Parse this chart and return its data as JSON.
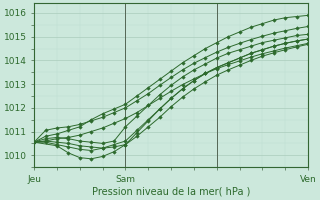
{
  "title": "Pression niveau de la mer( hPa )",
  "bg_color": "#cce8dc",
  "grid_major_color": "#aaccbb",
  "grid_minor_color": "#bbddd0",
  "line_color": "#2d6a2d",
  "marker_color": "#2d6a2d",
  "ylim": [
    1009.5,
    1016.4
  ],
  "xlim": [
    0,
    48
  ],
  "yticks": [
    1010,
    1011,
    1012,
    1013,
    1014,
    1015,
    1016
  ],
  "xtick_positions": [
    0,
    16,
    32,
    48
  ],
  "xtick_labels": [
    "Jeu",
    "Sam",
    "",
    "Ven"
  ],
  "vlines": [
    0,
    16,
    32
  ],
  "series": [
    [
      0,
      1010.55,
      2,
      1010.8,
      4,
      1010.9,
      6,
      1011.05,
      8,
      1011.2,
      10,
      1011.5,
      12,
      1011.75,
      14,
      1011.95,
      16,
      1012.15,
      18,
      1012.5,
      20,
      1012.85,
      22,
      1013.2,
      24,
      1013.55,
      26,
      1013.9,
      28,
      1014.2,
      30,
      1014.5,
      32,
      1014.75,
      34,
      1015.0,
      36,
      1015.2,
      38,
      1015.4,
      40,
      1015.55,
      42,
      1015.7,
      44,
      1015.8,
      46,
      1015.85,
      48,
      1015.9
    ],
    [
      0,
      1010.55,
      2,
      1010.7,
      4,
      1010.75,
      6,
      1010.7,
      8,
      1010.6,
      10,
      1010.55,
      12,
      1010.5,
      14,
      1010.6,
      16,
      1011.2,
      18,
      1011.65,
      20,
      1012.1,
      22,
      1012.55,
      24,
      1012.95,
      26,
      1013.3,
      28,
      1013.6,
      30,
      1013.85,
      32,
      1014.1,
      34,
      1014.3,
      36,
      1014.45,
      38,
      1014.6,
      40,
      1014.75,
      42,
      1014.85,
      44,
      1014.95,
      46,
      1015.05,
      48,
      1015.1
    ],
    [
      0,
      1010.55,
      2,
      1010.55,
      4,
      1010.45,
      6,
      1010.35,
      8,
      1010.25,
      10,
      1010.2,
      12,
      1010.3,
      14,
      1010.45,
      16,
      1010.6,
      18,
      1011.05,
      20,
      1011.5,
      22,
      1011.95,
      24,
      1012.4,
      26,
      1012.8,
      28,
      1013.15,
      30,
      1013.45,
      32,
      1013.7,
      34,
      1013.9,
      36,
      1014.1,
      38,
      1014.3,
      40,
      1014.45,
      42,
      1014.6,
      44,
      1014.72,
      46,
      1014.82,
      48,
      1014.9
    ],
    [
      0,
      1010.55,
      2,
      1010.6,
      4,
      1010.55,
      6,
      1010.5,
      8,
      1010.4,
      10,
      1010.35,
      12,
      1010.3,
      14,
      1010.35,
      16,
      1010.45,
      18,
      1010.8,
      20,
      1011.2,
      22,
      1011.6,
      24,
      1012.05,
      26,
      1012.45,
      28,
      1012.8,
      30,
      1013.1,
      32,
      1013.38,
      34,
      1013.6,
      36,
      1013.8,
      38,
      1014.0,
      40,
      1014.18,
      42,
      1014.32,
      44,
      1014.45,
      46,
      1014.57,
      48,
      1014.68
    ],
    [
      0,
      1010.55,
      2,
      1010.6,
      4,
      1010.7,
      6,
      1010.75,
      8,
      1010.85,
      10,
      1011.0,
      12,
      1011.15,
      14,
      1011.35,
      16,
      1011.55,
      18,
      1011.8,
      20,
      1012.1,
      22,
      1012.4,
      24,
      1012.7,
      26,
      1012.98,
      28,
      1013.22,
      30,
      1013.45,
      32,
      1013.65,
      34,
      1013.82,
      36,
      1013.98,
      38,
      1014.14,
      40,
      1014.28,
      42,
      1014.4,
      44,
      1014.52,
      46,
      1014.62,
      48,
      1014.72
    ],
    [
      0,
      1010.55,
      4,
      1010.4,
      6,
      1010.1,
      8,
      1009.9,
      10,
      1009.85,
      12,
      1009.95,
      14,
      1010.15,
      16,
      1010.45,
      18,
      1010.95,
      20,
      1011.45,
      22,
      1011.95,
      24,
      1012.4,
      26,
      1012.8,
      28,
      1013.15,
      30,
      1013.45,
      32,
      1013.7,
      34,
      1013.9,
      36,
      1014.1,
      38,
      1014.3,
      40,
      1014.45,
      42,
      1014.6,
      44,
      1014.72,
      46,
      1014.82,
      48,
      1014.9
    ],
    [
      0,
      1010.55,
      2,
      1011.05,
      4,
      1011.15,
      6,
      1011.2,
      8,
      1011.3,
      10,
      1011.45,
      12,
      1011.6,
      14,
      1011.8,
      16,
      1012.0,
      18,
      1012.3,
      20,
      1012.6,
      22,
      1012.95,
      24,
      1013.28,
      26,
      1013.6,
      28,
      1013.88,
      30,
      1014.12,
      32,
      1014.35,
      34,
      1014.55,
      36,
      1014.72,
      38,
      1014.88,
      40,
      1015.02,
      42,
      1015.15,
      44,
      1015.25,
      46,
      1015.35,
      48,
      1015.43
    ]
  ]
}
